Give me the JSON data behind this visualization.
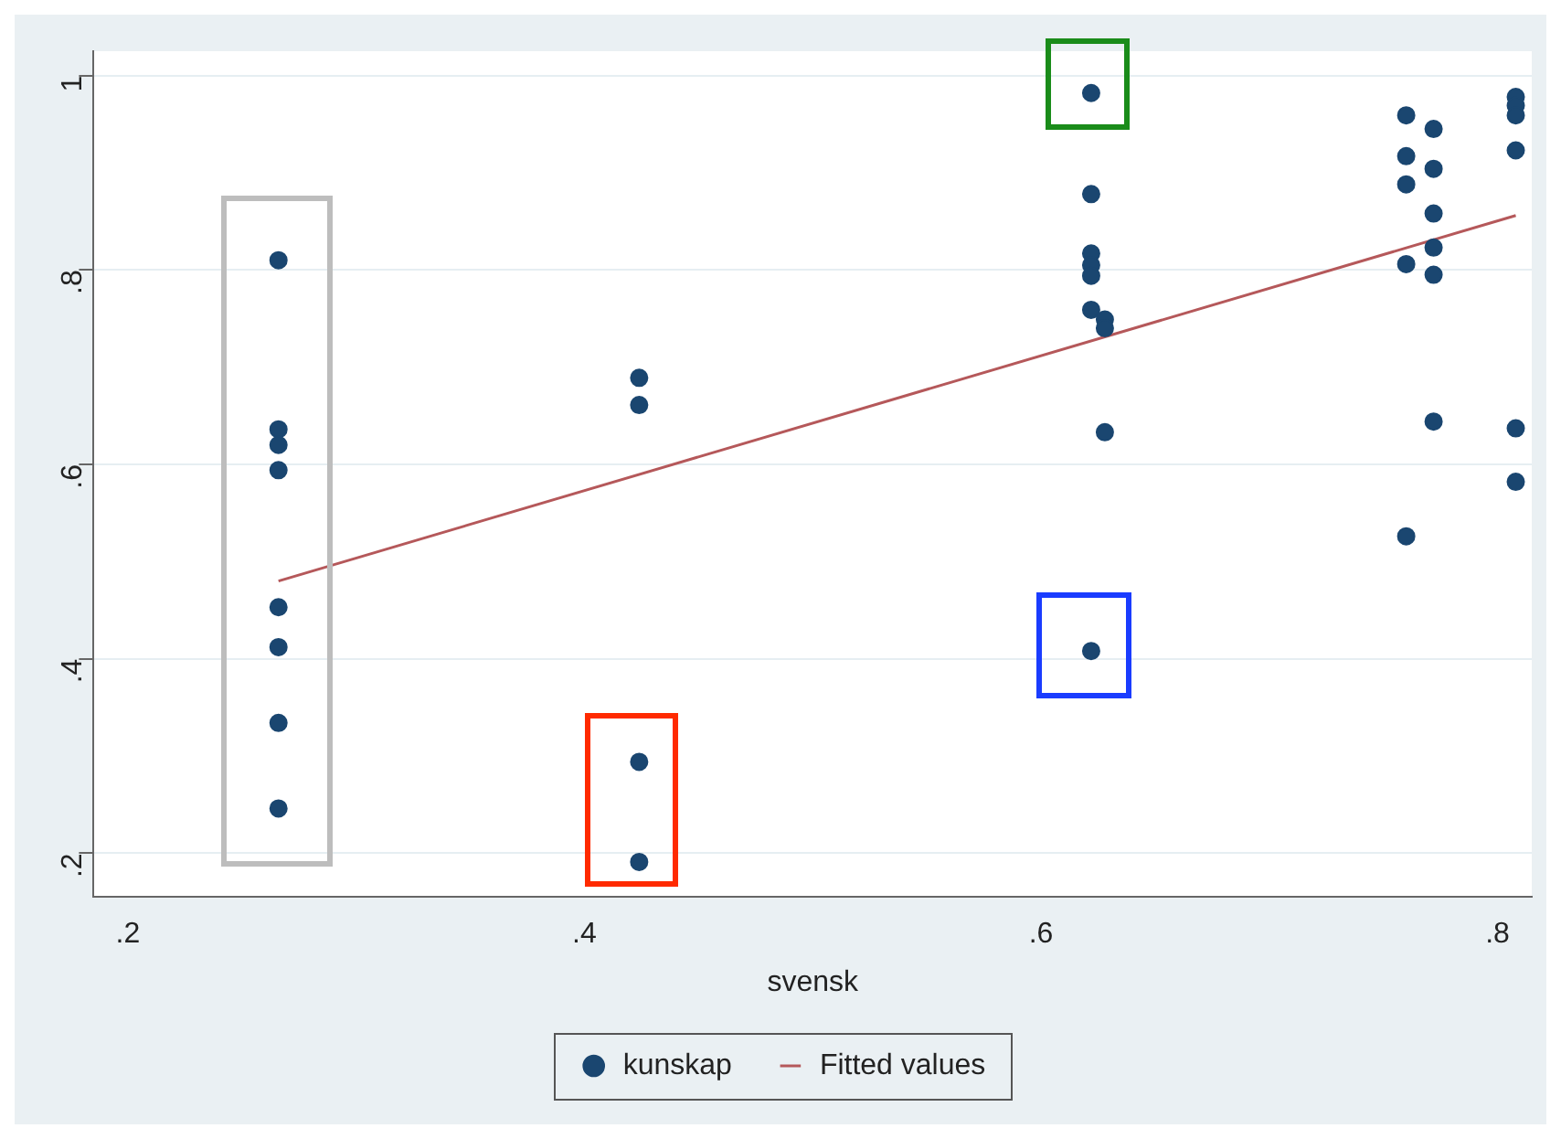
{
  "chart_data": {
    "type": "scatter",
    "xlabel": "svensk",
    "xlim": [
      0.185,
      0.815
    ],
    "ylim": [
      0.155,
      1.025
    ],
    "xticks": [
      {
        "value": 0.2,
        "label": ".2"
      },
      {
        "value": 0.4,
        "label": ".4"
      },
      {
        "value": 0.6,
        "label": ".6"
      },
      {
        "value": 0.8,
        "label": ".8"
      }
    ],
    "yticks": [
      {
        "value": 0.2,
        "label": ".2"
      },
      {
        "value": 0.4,
        "label": ".4"
      },
      {
        "value": 0.6,
        "label": ".6"
      },
      {
        "value": 0.8,
        "label": ".8"
      },
      {
        "value": 1,
        "label": "1"
      }
    ],
    "grid": "y",
    "legend": "bottom",
    "marker": "circle",
    "series": [
      {
        "name": "kunskap",
        "type": "scatter",
        "color": "#1a4670",
        "x": [
          0.266,
          0.266,
          0.266,
          0.266,
          0.266,
          0.266,
          0.266,
          0.266,
          0.424,
          0.424,
          0.424,
          0.424,
          0.622,
          0.622,
          0.622,
          0.622,
          0.622,
          0.622,
          0.622,
          0.628,
          0.628,
          0.628,
          0.76,
          0.76,
          0.76,
          0.76,
          0.76,
          0.772,
          0.772,
          0.772,
          0.772,
          0.772,
          0.772,
          0.808,
          0.808,
          0.808,
          0.808,
          0.808,
          0.808
        ],
        "values": [
          0.81,
          0.636,
          0.62,
          0.594,
          0.453,
          0.412,
          0.334,
          0.246,
          0.689,
          0.661,
          0.294,
          0.191,
          0.982,
          0.878,
          0.817,
          0.805,
          0.794,
          0.759,
          0.408,
          0.749,
          0.74,
          0.633,
          0.959,
          0.917,
          0.888,
          0.806,
          0.526,
          0.945,
          0.904,
          0.858,
          0.823,
          0.795,
          0.644,
          0.978,
          0.969,
          0.959,
          0.923,
          0.637,
          0.582
        ]
      },
      {
        "name": "Fitted values",
        "type": "line",
        "marker": "none",
        "color": "#b5585a",
        "x": [
          0.266,
          0.808
        ],
        "values": [
          0.48,
          0.856
        ]
      }
    ]
  }
}
